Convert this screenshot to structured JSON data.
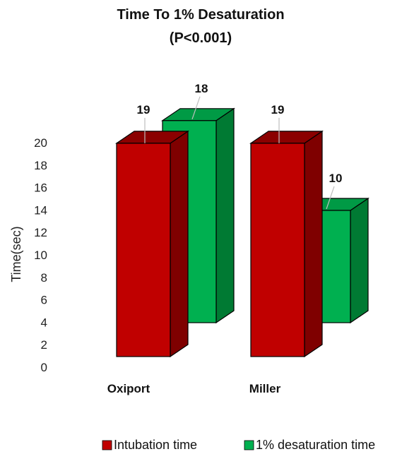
{
  "chart_data": {
    "type": "bar",
    "title": "Time To 1% Desaturation",
    "subtitle": "(P<0.001)",
    "xlabel": "",
    "ylabel": "Time(sec)",
    "ylim": [
      0,
      20
    ],
    "yticks": [
      0,
      2,
      4,
      6,
      8,
      10,
      12,
      14,
      16,
      18,
      20
    ],
    "categories": [
      "Oxiport",
      "Miller"
    ],
    "series": [
      {
        "name": "Intubation time",
        "values": [
          19,
          19
        ],
        "color": "#c00000",
        "side_color": "#7f0000",
        "top_color": "#8b0000"
      },
      {
        "name": "1% desaturation time",
        "values": [
          18,
          10
        ],
        "color": "#00b050",
        "side_color": "#007a33",
        "top_color": "#009a45"
      }
    ],
    "grid": false,
    "legend": "bottom-right",
    "style": "3d-clustered"
  }
}
